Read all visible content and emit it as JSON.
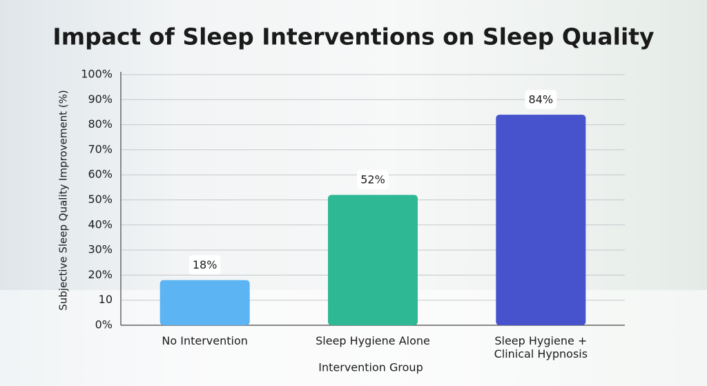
{
  "chart_data": {
    "type": "bar",
    "title": "Impact of Sleep Interventions on Sleep Quality",
    "x_label": "Intervention Group",
    "y_label": "Subjective Sleep Quality Improvement (%)",
    "categories": [
      "No Intervention",
      "Sleep Hygiene Alone",
      "Sleep Hygiene +\nClinical Hypnosis"
    ],
    "values": [
      18,
      52,
      84
    ],
    "value_labels": [
      "18%",
      "52%",
      "84%"
    ],
    "colors": [
      "#5db4f2",
      "#2fb894",
      "#4653cc"
    ],
    "ylim": [
      0,
      100
    ],
    "yticks": [
      {
        "value": 0,
        "label": "0%"
      },
      10,
      {
        "value": 20,
        "label": "20%"
      },
      {
        "value": 30,
        "label": "30%"
      },
      {
        "value": 40,
        "label": "40%"
      },
      {
        "value": 50,
        "label": "50%"
      },
      {
        "value": 60,
        "label": "60%"
      },
      {
        "value": 70,
        "label": "70%"
      },
      {
        "value": 80,
        "label": "80%"
      },
      {
        "value": 90,
        "label": "90%"
      },
      {
        "value": 100,
        "label": "100%"
      }
    ],
    "grid": true
  }
}
